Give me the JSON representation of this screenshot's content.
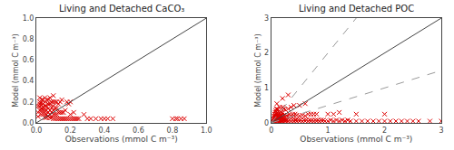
{
  "chart_data": [
    {
      "type": "scatter",
      "title": "Living and Detached CaCO₃",
      "xlabel": "Observations (mmol C m⁻³)",
      "ylabel": "Model (mmol C m⁻³)",
      "xlim": [
        0,
        1.0
      ],
      "ylim": [
        0,
        1.0
      ],
      "xticks": [
        {
          "value": 0,
          "label": "0.0"
        },
        0.2,
        0.4,
        0.6,
        0.8,
        {
          "value": 1.0,
          "label": "1.0"
        }
      ],
      "yticks": [
        {
          "value": 0,
          "label": "0.0"
        },
        0.2,
        0.4,
        0.6,
        0.8,
        {
          "value": 1.0,
          "label": "1.0"
        }
      ],
      "grid": false,
      "series": [
        {
          "type": "scatter",
          "marker": "x",
          "color": "#dd0000",
          "x": [
            0.01,
            0.01,
            0.01,
            0.02,
            0.02,
            0.02,
            0.02,
            0.02,
            0.03,
            0.03,
            0.03,
            0.03,
            0.03,
            0.03,
            0.04,
            0.04,
            0.04,
            0.04,
            0.04,
            0.05,
            0.05,
            0.05,
            0.05,
            0.05,
            0.05,
            0.06,
            0.06,
            0.06,
            0.06,
            0.06,
            0.07,
            0.07,
            0.07,
            0.07,
            0.07,
            0.08,
            0.08,
            0.08,
            0.08,
            0.08,
            0.09,
            0.09,
            0.09,
            0.09,
            0.1,
            0.1,
            0.1,
            0.1,
            0.1,
            0.1,
            0.11,
            0.11,
            0.11,
            0.11,
            0.12,
            0.12,
            0.12,
            0.12,
            0.13,
            0.13,
            0.13,
            0.14,
            0.14,
            0.14,
            0.15,
            0.15,
            0.15,
            0.16,
            0.16,
            0.17,
            0.17,
            0.18,
            0.18,
            0.19,
            0.19,
            0.2,
            0.2,
            0.2,
            0.21,
            0.22,
            0.22,
            0.23,
            0.24,
            0.25,
            0.28,
            0.3,
            0.32,
            0.35,
            0.38,
            0.4,
            0.42,
            0.45,
            0.8,
            0.82,
            0.83,
            0.85,
            0.87
          ],
          "values": [
            0.06,
            0.1,
            0.16,
            0.12,
            0.16,
            0.18,
            0.2,
            0.24,
            0.08,
            0.12,
            0.14,
            0.17,
            0.2,
            0.22,
            0.08,
            0.12,
            0.15,
            0.18,
            0.22,
            0.05,
            0.08,
            0.12,
            0.16,
            0.2,
            0.24,
            0.05,
            0.08,
            0.12,
            0.16,
            0.22,
            0.06,
            0.1,
            0.14,
            0.18,
            0.22,
            0.05,
            0.08,
            0.12,
            0.18,
            0.24,
            0.05,
            0.1,
            0.15,
            0.2,
            0.04,
            0.08,
            0.12,
            0.16,
            0.2,
            0.26,
            0.04,
            0.08,
            0.14,
            0.2,
            0.04,
            0.08,
            0.14,
            0.2,
            0.04,
            0.1,
            0.18,
            0.04,
            0.1,
            0.2,
            0.04,
            0.1,
            0.22,
            0.04,
            0.1,
            0.04,
            0.12,
            0.04,
            0.2,
            0.04,
            0.18,
            0.04,
            0.08,
            0.2,
            0.04,
            0.04,
            0.1,
            0.04,
            0.04,
            0.04,
            0.08,
            0.04,
            0.04,
            0.04,
            0.04,
            0.04,
            0.04,
            0.04,
            0.04,
            0.04,
            0.04,
            0.04,
            0.04
          ]
        },
        {
          "type": "line",
          "line_style": "solid",
          "color": "#444444",
          "x": [
            0,
            1.0
          ],
          "values": [
            0,
            1.0
          ]
        }
      ]
    },
    {
      "type": "scatter",
      "title": "Living and Detached POC",
      "xlabel": "Observations (mmol C m⁻³)",
      "ylabel": "Model (mmol C m⁻³)",
      "xlim": [
        0,
        3.0
      ],
      "ylim": [
        0,
        3.0
      ],
      "xticks": [
        0,
        1,
        2,
        3
      ],
      "yticks": [
        0,
        1,
        2,
        3
      ],
      "grid": false,
      "series": [
        {
          "type": "scatter",
          "marker": "x",
          "color": "#dd0000",
          "x": [
            0.02,
            0.03,
            0.04,
            0.04,
            0.05,
            0.05,
            0.05,
            0.06,
            0.06,
            0.06,
            0.07,
            0.07,
            0.07,
            0.08,
            0.08,
            0.08,
            0.08,
            0.09,
            0.09,
            0.09,
            0.09,
            0.1,
            0.1,
            0.1,
            0.1,
            0.1,
            0.1,
            0.11,
            0.11,
            0.11,
            0.12,
            0.12,
            0.12,
            0.12,
            0.13,
            0.13,
            0.13,
            0.14,
            0.14,
            0.15,
            0.15,
            0.15,
            0.15,
            0.16,
            0.16,
            0.17,
            0.17,
            0.18,
            0.18,
            0.18,
            0.19,
            0.19,
            0.2,
            0.2,
            0.2,
            0.2,
            0.2,
            0.21,
            0.21,
            0.22,
            0.22,
            0.22,
            0.23,
            0.24,
            0.25,
            0.25,
            0.25,
            0.26,
            0.27,
            0.28,
            0.3,
            0.3,
            0.3,
            0.3,
            0.32,
            0.32,
            0.35,
            0.35,
            0.35,
            0.38,
            0.38,
            0.4,
            0.4,
            0.4,
            0.42,
            0.42,
            0.44,
            0.45,
            0.45,
            0.48,
            0.5,
            0.5,
            0.5,
            0.52,
            0.55,
            0.55,
            0.58,
            0.6,
            0.6,
            0.6,
            0.62,
            0.65,
            0.65,
            0.68,
            0.7,
            0.7,
            0.72,
            0.75,
            0.75,
            0.78,
            0.8,
            0.8,
            0.82,
            0.85,
            0.88,
            0.9,
            0.92,
            0.95,
            1.0,
            1.0,
            1.05,
            1.1,
            1.1,
            1.15,
            1.2,
            1.2,
            1.25,
            1.3,
            1.35,
            1.4,
            1.5,
            1.5,
            1.6,
            1.7,
            1.8,
            1.9,
            2.0,
            2.0,
            2.1,
            2.2,
            2.3,
            2.4,
            2.5,
            2.6,
            2.8,
            3.0
          ],
          "values": [
            0.02,
            0.04,
            0.05,
            0.1,
            0.05,
            0.12,
            0.2,
            0.08,
            0.15,
            0.25,
            0.1,
            0.18,
            0.3,
            0.05,
            0.12,
            0.2,
            0.35,
            0.08,
            0.15,
            0.25,
            0.4,
            0.05,
            0.1,
            0.18,
            0.28,
            0.4,
            0.55,
            0.08,
            0.18,
            0.3,
            0.05,
            0.12,
            0.22,
            0.38,
            0.08,
            0.18,
            0.32,
            0.08,
            0.2,
            0.05,
            0.15,
            0.28,
            0.45,
            0.08,
            0.2,
            0.08,
            0.22,
            0.05,
            0.15,
            0.3,
            0.08,
            0.22,
            0.05,
            0.15,
            0.28,
            0.45,
            0.7,
            0.08,
            0.2,
            0.08,
            0.22,
            0.4,
            0.08,
            0.08,
            0.05,
            0.18,
            0.38,
            0.08,
            0.2,
            0.08,
            0.05,
            0.18,
            0.4,
            0.8,
            0.08,
            0.25,
            0.05,
            0.2,
            0.45,
            0.08,
            0.25,
            0.05,
            0.2,
            0.5,
            0.08,
            0.25,
            0.08,
            0.05,
            0.22,
            0.08,
            0.05,
            0.2,
            0.5,
            0.08,
            0.05,
            0.22,
            0.08,
            0.05,
            0.2,
            0.55,
            0.08,
            0.05,
            0.25,
            0.08,
            0.05,
            0.25,
            0.08,
            0.05,
            0.25,
            0.08,
            0.05,
            0.25,
            0.08,
            0.05,
            0.08,
            0.05,
            0.08,
            0.05,
            0.05,
            0.25,
            0.08,
            0.05,
            0.25,
            0.08,
            0.05,
            0.3,
            0.08,
            0.05,
            0.08,
            0.05,
            0.05,
            0.25,
            0.05,
            0.05,
            0.05,
            0.05,
            0.05,
            0.25,
            0.05,
            0.05,
            0.05,
            0.05,
            0.05,
            0.05,
            0.05,
            0.05
          ]
        },
        {
          "type": "line",
          "line_style": "solid",
          "color": "#444444",
          "x": [
            0,
            3.0
          ],
          "values": [
            0,
            3.0
          ]
        },
        {
          "type": "line",
          "line_style": "dashed",
          "color": "#999999",
          "x": [
            0,
            1.5
          ],
          "values": [
            0,
            3.0
          ]
        },
        {
          "type": "line",
          "line_style": "dashed",
          "color": "#999999",
          "x": [
            0,
            3.0
          ],
          "values": [
            0,
            1.5
          ]
        }
      ]
    }
  ]
}
